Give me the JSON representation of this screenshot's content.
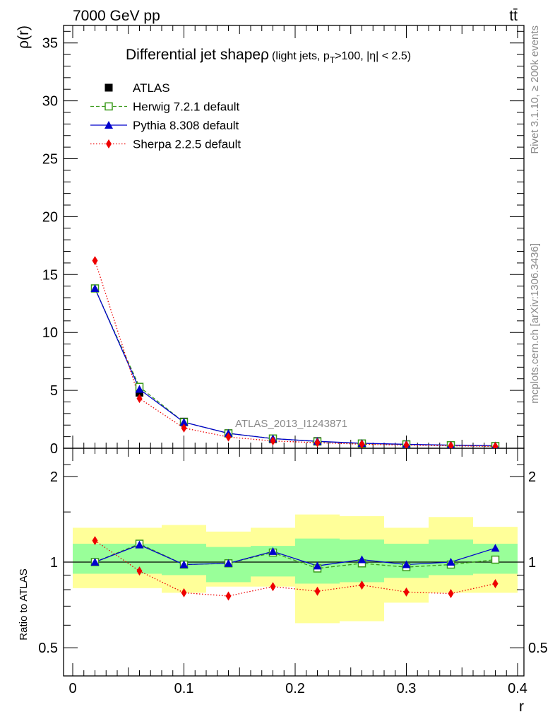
{
  "header": {
    "energy_label": "7000 GeV pp",
    "process_label": "tt̄"
  },
  "side_labels": {
    "rivet": "Rivet 3.1.10, ≥ 200k events",
    "mcplots": "mcplots.cern.ch [arXiv:1306.3436]"
  },
  "colors": {
    "atlas": "#000000",
    "herwig": "#3a9a1a",
    "pythia": "#0000cc",
    "sherpa": "#ee0000",
    "band_yellow": "#ffff99",
    "band_green": "#99ff99"
  },
  "chart_data": [
    {
      "type": "line",
      "title": "Differential jet shapeρ",
      "subtitle": "(light jets, p_T>100, |η| < 2.5)",
      "subtitle_parts": {
        "open": "(light jets, p",
        "sub": "T",
        "rest": ">100, |η| < 2.5)"
      },
      "analysis_label": "ATLAS_2013_I1243871",
      "xlabel": "r",
      "ylabel": "ρ(r)",
      "xlim": [
        0,
        0.4
      ],
      "ylim": [
        0,
        36
      ],
      "x_ticks": [
        0,
        0.1,
        0.2,
        0.3,
        0.4
      ],
      "y_ticks": [
        0,
        5,
        10,
        15,
        20,
        25,
        30,
        35
      ],
      "y_tick_labels": [
        "0",
        "5",
        "10",
        "15",
        "20",
        "25",
        "30",
        "35"
      ],
      "x": [
        0.02,
        0.06,
        0.1,
        0.14,
        0.18,
        0.22,
        0.26,
        0.3,
        0.34,
        0.38
      ],
      "series": [
        {
          "name": "ATLAS",
          "marker": "square-filled",
          "values": [
            13.8,
            4.8,
            2.3,
            1.3,
            0.78,
            0.62,
            0.42,
            0.35,
            0.27,
            0.19
          ]
        },
        {
          "name": "Herwig 7.2.1 default",
          "marker": "square-open",
          "line": "dashed",
          "values": [
            13.8,
            5.3,
            2.25,
            1.28,
            0.84,
            0.58,
            0.41,
            0.33,
            0.26,
            0.19
          ]
        },
        {
          "name": "Pythia 8.308 default",
          "marker": "triangle",
          "line": "solid",
          "values": [
            13.8,
            5.1,
            2.25,
            1.29,
            0.83,
            0.6,
            0.43,
            0.34,
            0.27,
            0.21
          ]
        },
        {
          "name": "Sherpa 2.2.5 default",
          "marker": "diamond",
          "line": "dotted",
          "values": [
            16.2,
            4.3,
            1.75,
            0.97,
            0.63,
            0.48,
            0.35,
            0.27,
            0.21,
            0.16
          ]
        }
      ]
    },
    {
      "type": "line",
      "title": "",
      "xlabel": "r",
      "ylabel": "Ratio to ATLAS",
      "xlim": [
        0,
        0.4
      ],
      "ylim": [
        0.4,
        2.3
      ],
      "y_scale": "log",
      "x_ticks": [
        0,
        0.1,
        0.2,
        0.3,
        0.4
      ],
      "x_tick_labels": [
        "0",
        "0.1",
        "0.2",
        "0.3",
        "0.4"
      ],
      "y_ticks": [
        0.5,
        1,
        2
      ],
      "y_tick_labels": [
        "0.5",
        "1",
        "2"
      ],
      "x": [
        0.02,
        0.06,
        0.1,
        0.14,
        0.18,
        0.22,
        0.26,
        0.3,
        0.34,
        0.38
      ],
      "bin_edges": [
        0.0,
        0.04,
        0.08,
        0.12,
        0.16,
        0.2,
        0.24,
        0.28,
        0.32,
        0.36,
        0.4
      ],
      "uncertainty_bands": {
        "total_low": [
          0.81,
          0.81,
          0.78,
          0.82,
          0.82,
          0.61,
          0.62,
          0.72,
          0.78,
          0.78
        ],
        "total_high": [
          1.32,
          1.32,
          1.35,
          1.28,
          1.32,
          1.47,
          1.45,
          1.32,
          1.44,
          1.33
        ],
        "stat_low": [
          0.91,
          0.91,
          0.9,
          0.85,
          0.89,
          0.84,
          0.85,
          0.88,
          0.9,
          0.91
        ],
        "stat_high": [
          1.16,
          1.16,
          1.16,
          1.13,
          1.14,
          1.21,
          1.2,
          1.16,
          1.2,
          1.16
        ]
      },
      "series": [
        {
          "name": "ATLAS",
          "values": [
            1,
            1,
            1,
            1,
            1,
            1,
            1,
            1,
            1,
            1
          ]
        },
        {
          "name": "Herwig 7.2.1 default",
          "values": [
            1.0,
            1.16,
            0.98,
            0.99,
            1.08,
            0.95,
            0.99,
            0.96,
            0.98,
            1.02
          ]
        },
        {
          "name": "Pythia 8.308 default",
          "values": [
            1.0,
            1.15,
            0.98,
            0.99,
            1.09,
            0.97,
            1.02,
            0.98,
            1.0,
            1.12
          ]
        },
        {
          "name": "Sherpa 2.2.5 default",
          "values": [
            1.19,
            0.93,
            0.78,
            0.76,
            0.82,
            0.79,
            0.83,
            0.785,
            0.775,
            0.84
          ]
        }
      ]
    }
  ]
}
